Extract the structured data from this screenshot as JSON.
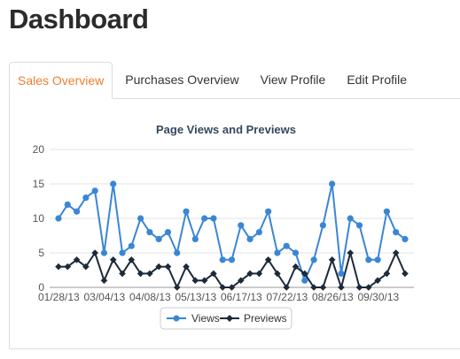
{
  "page": {
    "title": "Dashboard"
  },
  "tabs": [
    {
      "label": "Sales Overview",
      "active": true
    },
    {
      "label": "Purchases Overview",
      "active": false
    },
    {
      "label": "View Profile",
      "active": false
    },
    {
      "label": "Edit Profile",
      "active": false
    }
  ],
  "colors": {
    "active_tab": "#ee7f2d",
    "views": "#3a86d6",
    "previews": "#1c2a3a"
  },
  "chart_data": {
    "type": "line",
    "title": "Page Views and Previews",
    "xlabel": "",
    "ylabel": "",
    "ylim": [
      0,
      20
    ],
    "yticks": [
      0,
      5,
      10,
      15,
      20
    ],
    "grid": true,
    "legend_position": "bottom",
    "x_tick_labels": [
      "01/28/13",
      "03/04/13",
      "04/08/13",
      "05/13/13",
      "06/17/13",
      "07/22/13",
      "08/26/13",
      "09/30/13"
    ],
    "series": [
      {
        "name": "Views",
        "color": "#3a86d6",
        "marker": "circle",
        "values": [
          10,
          12,
          11,
          13,
          14,
          5,
          15,
          5,
          6,
          10,
          8,
          7,
          8,
          5,
          11,
          7,
          10,
          10,
          4,
          4,
          9,
          7,
          8,
          11,
          5,
          6,
          5,
          1,
          4,
          9,
          15,
          2,
          10,
          9,
          4,
          4,
          11,
          8,
          7
        ]
      },
      {
        "name": "Previews",
        "color": "#1c2a3a",
        "marker": "diamond",
        "values": [
          3,
          3,
          4,
          3,
          5,
          1,
          4,
          2,
          4,
          2,
          2,
          3,
          3,
          0,
          3,
          1,
          1,
          2,
          0,
          0,
          1,
          2,
          2,
          4,
          2,
          0,
          3,
          2,
          0,
          0,
          4,
          0,
          5,
          0,
          0,
          1,
          2,
          5,
          2
        ]
      }
    ]
  }
}
